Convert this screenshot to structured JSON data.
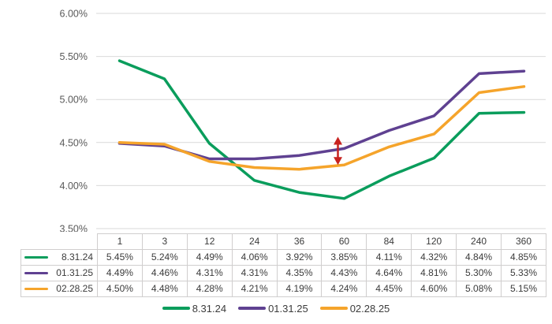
{
  "colors": {
    "background": "#FFFFFF",
    "gridline": "#D9D9D9",
    "axis_text": "#595959",
    "table_text": "#3B3B3B",
    "table_border": "#D0CECE"
  },
  "chart_data": {
    "type": "line",
    "title": "",
    "xlabel": "",
    "ylabel": "",
    "categories": [
      "1",
      "3",
      "12",
      "24",
      "36",
      "60",
      "84",
      "120",
      "240",
      "360"
    ],
    "series": [
      {
        "name": "8.31.24",
        "color": "#0A9D5C",
        "values": [
          5.45,
          5.24,
          4.49,
          4.06,
          3.92,
          3.85,
          4.11,
          4.32,
          4.84,
          4.85
        ]
      },
      {
        "name": "01.31.25",
        "color": "#5F4191",
        "values": [
          4.49,
          4.46,
          4.31,
          4.31,
          4.35,
          4.43,
          4.64,
          4.81,
          5.3,
          5.33
        ]
      },
      {
        "name": "02.28.25",
        "color": "#F5A42B",
        "values": [
          4.5,
          4.48,
          4.28,
          4.21,
          4.19,
          4.24,
          4.45,
          4.6,
          5.08,
          5.15
        ]
      }
    ],
    "ylim": [
      3.5,
      6.0
    ],
    "y_ticks": [
      {
        "value": 6.0,
        "label": "6.00%"
      },
      {
        "value": 5.5,
        "label": "5.50%"
      },
      {
        "value": 5.0,
        "label": "5.00%"
      },
      {
        "value": 4.5,
        "label": "4.50%"
      },
      {
        "value": 4.0,
        "label": "4.00%"
      },
      {
        "value": 3.5,
        "label": "3.50%"
      }
    ],
    "grid": true,
    "legend_position": "bottom",
    "value_suffix": "%",
    "annotation": {
      "type": "vertical-double-arrow",
      "color": "#C7221F",
      "category": "60",
      "from_series": "01.31.25",
      "to_series": "02.28.25"
    }
  }
}
